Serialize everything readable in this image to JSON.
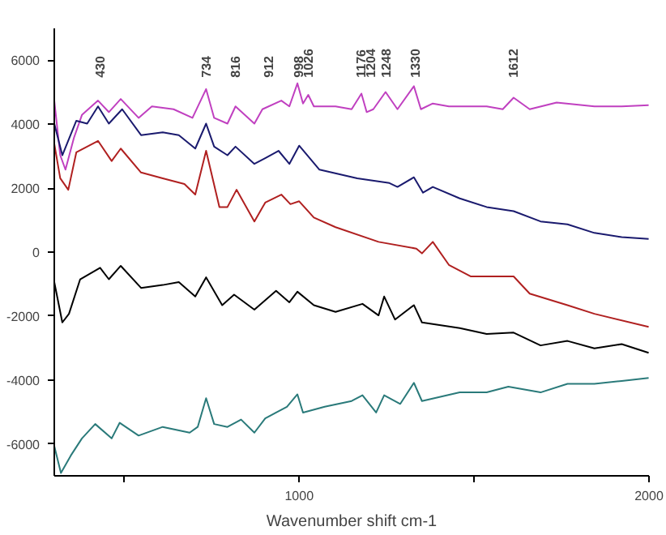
{
  "chart_data": {
    "type": "line",
    "xlabel": "Wavenumber shift cm-1",
    "xlim": [
      300,
      2000
    ],
    "ylim": [
      -7000,
      7000
    ],
    "xticks": [
      {
        "value": 500,
        "label": null
      },
      1000,
      {
        "value": 1500,
        "label": null
      },
      2000
    ],
    "yticks": [
      -6000,
      -4000,
      -2000,
      0,
      2000,
      4000,
      6000
    ],
    "grid": false,
    "marker": "none",
    "line_style": "solid",
    "annotations": [
      "430",
      "734",
      "816",
      "912",
      "998",
      "1026",
      "1176",
      "1204",
      "1248",
      "1330",
      "1612"
    ],
    "series": [
      {
        "color": "#c040c0",
        "x": [
          300,
          317,
          332,
          356,
          379,
          425,
          456,
          490,
          541,
          579,
          641,
          695,
          734,
          757,
          795,
          818,
          872,
          895,
          949,
          972,
          995,
          1011,
          1026,
          1042,
          1104,
          1150,
          1178,
          1193,
          1212,
          1247,
          1281,
          1328,
          1348,
          1382,
          1428,
          1536,
          1582,
          1613,
          1659,
          1736,
          1844,
          1922,
          1999
        ],
        "values": [
          4740,
          3030,
          2580,
          3570,
          4290,
          4740,
          4380,
          4790,
          4200,
          4560,
          4470,
          4200,
          5100,
          4200,
          4020,
          4560,
          4020,
          4470,
          4740,
          4560,
          5280,
          4650,
          4920,
          4560,
          4560,
          4470,
          4960,
          4380,
          4470,
          5010,
          4470,
          5190,
          4470,
          4650,
          4560,
          4560,
          4470,
          4830,
          4470,
          4680,
          4560,
          4560,
          4600
        ]
      },
      {
        "color": "#1a1a6e",
        "x": [
          300,
          323,
          363,
          394,
          425,
          456,
          494,
          548,
          610,
          656,
          703,
          734,
          757,
          795,
          818,
          872,
          903,
          941,
          972,
          1000,
          1058,
          1166,
          1258,
          1281,
          1328,
          1354,
          1382,
          1459,
          1536,
          1613,
          1690,
          1767,
          1844,
          1922,
          1999
        ],
        "values": [
          4020,
          3030,
          4110,
          4020,
          4560,
          4020,
          4470,
          3660,
          3750,
          3660,
          3240,
          4020,
          3300,
          3030,
          3300,
          2760,
          2940,
          3170,
          2760,
          3330,
          2580,
          2310,
          2160,
          2040,
          2340,
          1860,
          2040,
          1680,
          1410,
          1280,
          960,
          870,
          600,
          470,
          410
        ]
      },
      {
        "color": "#b02020",
        "x": [
          300,
          317,
          340,
          363,
          425,
          464,
          490,
          548,
          610,
          672,
          703,
          734,
          772,
          795,
          821,
          872,
          903,
          949,
          975,
          1000,
          1042,
          1104,
          1227,
          1335,
          1351,
          1382,
          1428,
          1490,
          1613,
          1659,
          1767,
          1844,
          1999
        ],
        "values": [
          3390,
          2310,
          1950,
          3120,
          3480,
          2850,
          3240,
          2490,
          2310,
          2130,
          1800,
          3170,
          1410,
          1410,
          1950,
          960,
          1550,
          1800,
          1500,
          1590,
          1080,
          780,
          320,
          110,
          -40,
          320,
          -400,
          -760,
          -760,
          -1300,
          -1660,
          -1930,
          -2340
        ]
      },
      {
        "color": "#000000",
        "x": [
          300,
          323,
          342,
          374,
          431,
          456,
          490,
          548,
          610,
          656,
          703,
          734,
          780,
          814,
          872,
          934,
          972,
          995,
          1042,
          1104,
          1181,
          1227,
          1243,
          1274,
          1328,
          1351,
          1459,
          1536,
          1613,
          1690,
          1767,
          1844,
          1922,
          1999
        ],
        "values": [
          -940,
          -2200,
          -1930,
          -850,
          -490,
          -850,
          -430,
          -1120,
          -1030,
          -940,
          -1390,
          -790,
          -1660,
          -1330,
          -1800,
          -1210,
          -1570,
          -1240,
          -1660,
          -1870,
          -1620,
          -1980,
          -1390,
          -2110,
          -1660,
          -2200,
          -2380,
          -2560,
          -2520,
          -2920,
          -2780,
          -3010,
          -2880,
          -3150
        ]
      },
      {
        "color": "#2a7a7a",
        "x": [
          300,
          319,
          347,
          379,
          417,
          464,
          487,
          541,
          610,
          687,
          710,
          734,
          757,
          795,
          834,
          872,
          903,
          965,
          995,
          1011,
          1073,
          1150,
          1181,
          1220,
          1243,
          1289,
          1328,
          1351,
          1459,
          1536,
          1598,
          1690,
          1767,
          1844,
          1922,
          1999
        ],
        "values": [
          -6070,
          -6910,
          -6370,
          -5830,
          -5380,
          -5830,
          -5340,
          -5740,
          -5470,
          -5650,
          -5470,
          -4570,
          -5380,
          -5470,
          -5240,
          -5650,
          -5200,
          -4840,
          -4450,
          -5020,
          -4840,
          -4660,
          -4480,
          -5020,
          -4480,
          -4750,
          -4090,
          -4660,
          -4390,
          -4390,
          -4210,
          -4390,
          -4120,
          -4120,
          -4030,
          -3940
        ]
      }
    ]
  }
}
